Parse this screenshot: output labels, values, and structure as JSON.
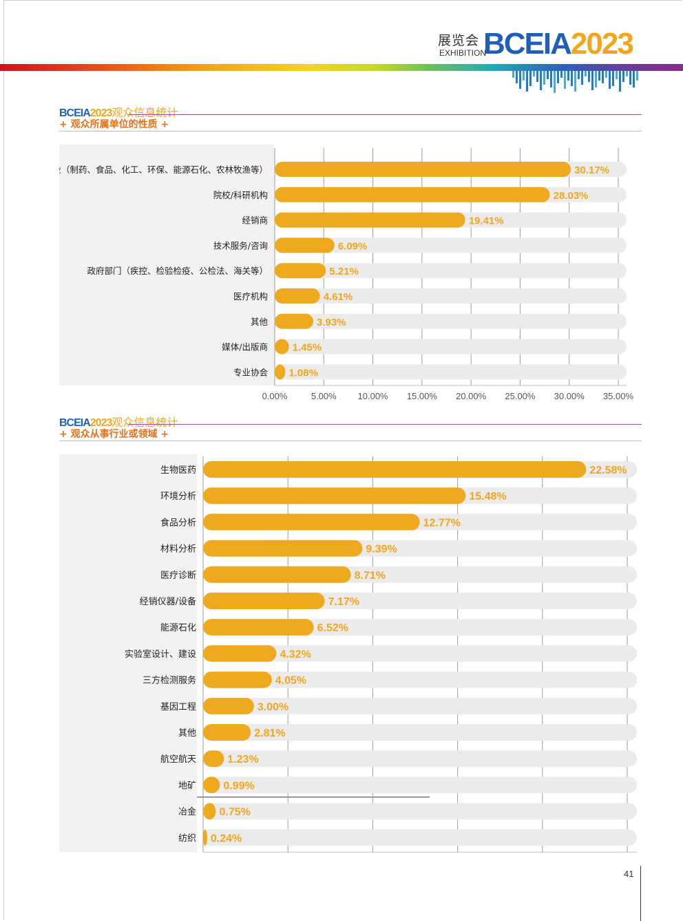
{
  "header": {
    "brand_cn": "展览会",
    "brand_en": "EXHIBITION",
    "brand_main": "BCEIA",
    "brand_year": "2023"
  },
  "sections": [
    {
      "brand_main": "BCEIA",
      "brand_year": "2023",
      "title": "观众信息统计",
      "subtitle": "+ 观众所属单位的性质 +"
    },
    {
      "brand_main": "BCEIA",
      "brand_year": "2023",
      "title": "观众信息统计",
      "subtitle": "+ 观众从事行业或领域 +"
    }
  ],
  "colors": {
    "bar": "#EEA91E",
    "track": "#EBEBEB",
    "label_value": "#F2A51D",
    "grid": "#9B9B9B",
    "panel_bg": "#F2F2F2",
    "accent_blue": "#1F5FB6"
  },
  "chart_data": [
    {
      "type": "bar",
      "orientation": "horizontal",
      "categories": [
        "生产企业（制药、食品、化工、环保、能源石化、农林牧渔等）",
        "院校/科研机构",
        "经销商",
        "技术服务/咨询",
        "政府部门（疾控、检验检疫、公检法、海关等）",
        "医疗机构",
        "其他",
        "媒体/出版商",
        "专业协会"
      ],
      "values": [
        30.17,
        28.03,
        19.41,
        6.09,
        5.21,
        4.61,
        3.93,
        1.45,
        1.08
      ],
      "value_labels": [
        "30.17%",
        "28.03%",
        "19.41%",
        "6.09%",
        "5.21%",
        "4.61%",
        "3.93%",
        "1.45%",
        "1.08%"
      ],
      "xlim": [
        0,
        35
      ],
      "xticks": [
        "0.00%",
        "5.00%",
        "10.00%",
        "15.00%",
        "20.00%",
        "25.00%",
        "30.00%",
        "35.00%"
      ],
      "grid": true
    },
    {
      "type": "bar",
      "orientation": "horizontal",
      "categories": [
        "生物医药",
        "环境分析",
        "食品分析",
        "材料分析",
        "医疗诊断",
        "经销仪器/设备",
        "能源石化",
        "实验室设计、建设",
        "三方检测服务",
        "基因工程",
        "其他",
        "航空航天",
        "地矿",
        "冶金",
        "纺织"
      ],
      "values": [
        22.58,
        15.48,
        12.77,
        9.39,
        8.71,
        7.17,
        6.52,
        4.32,
        4.05,
        3.0,
        2.81,
        1.23,
        0.99,
        0.75,
        0.24
      ],
      "value_labels": [
        "22.58%",
        "15.48%",
        "12.77%",
        "9.39%",
        "8.71%",
        "7.17%",
        "6.52%",
        "4.32%",
        "4.05%",
        "3.00%",
        "2.81%",
        "1.23%",
        "0.99%",
        "0.75%",
        "0.24%"
      ],
      "xlim": [
        0,
        25
      ],
      "grid": true
    }
  ],
  "page": {
    "number": "41"
  }
}
